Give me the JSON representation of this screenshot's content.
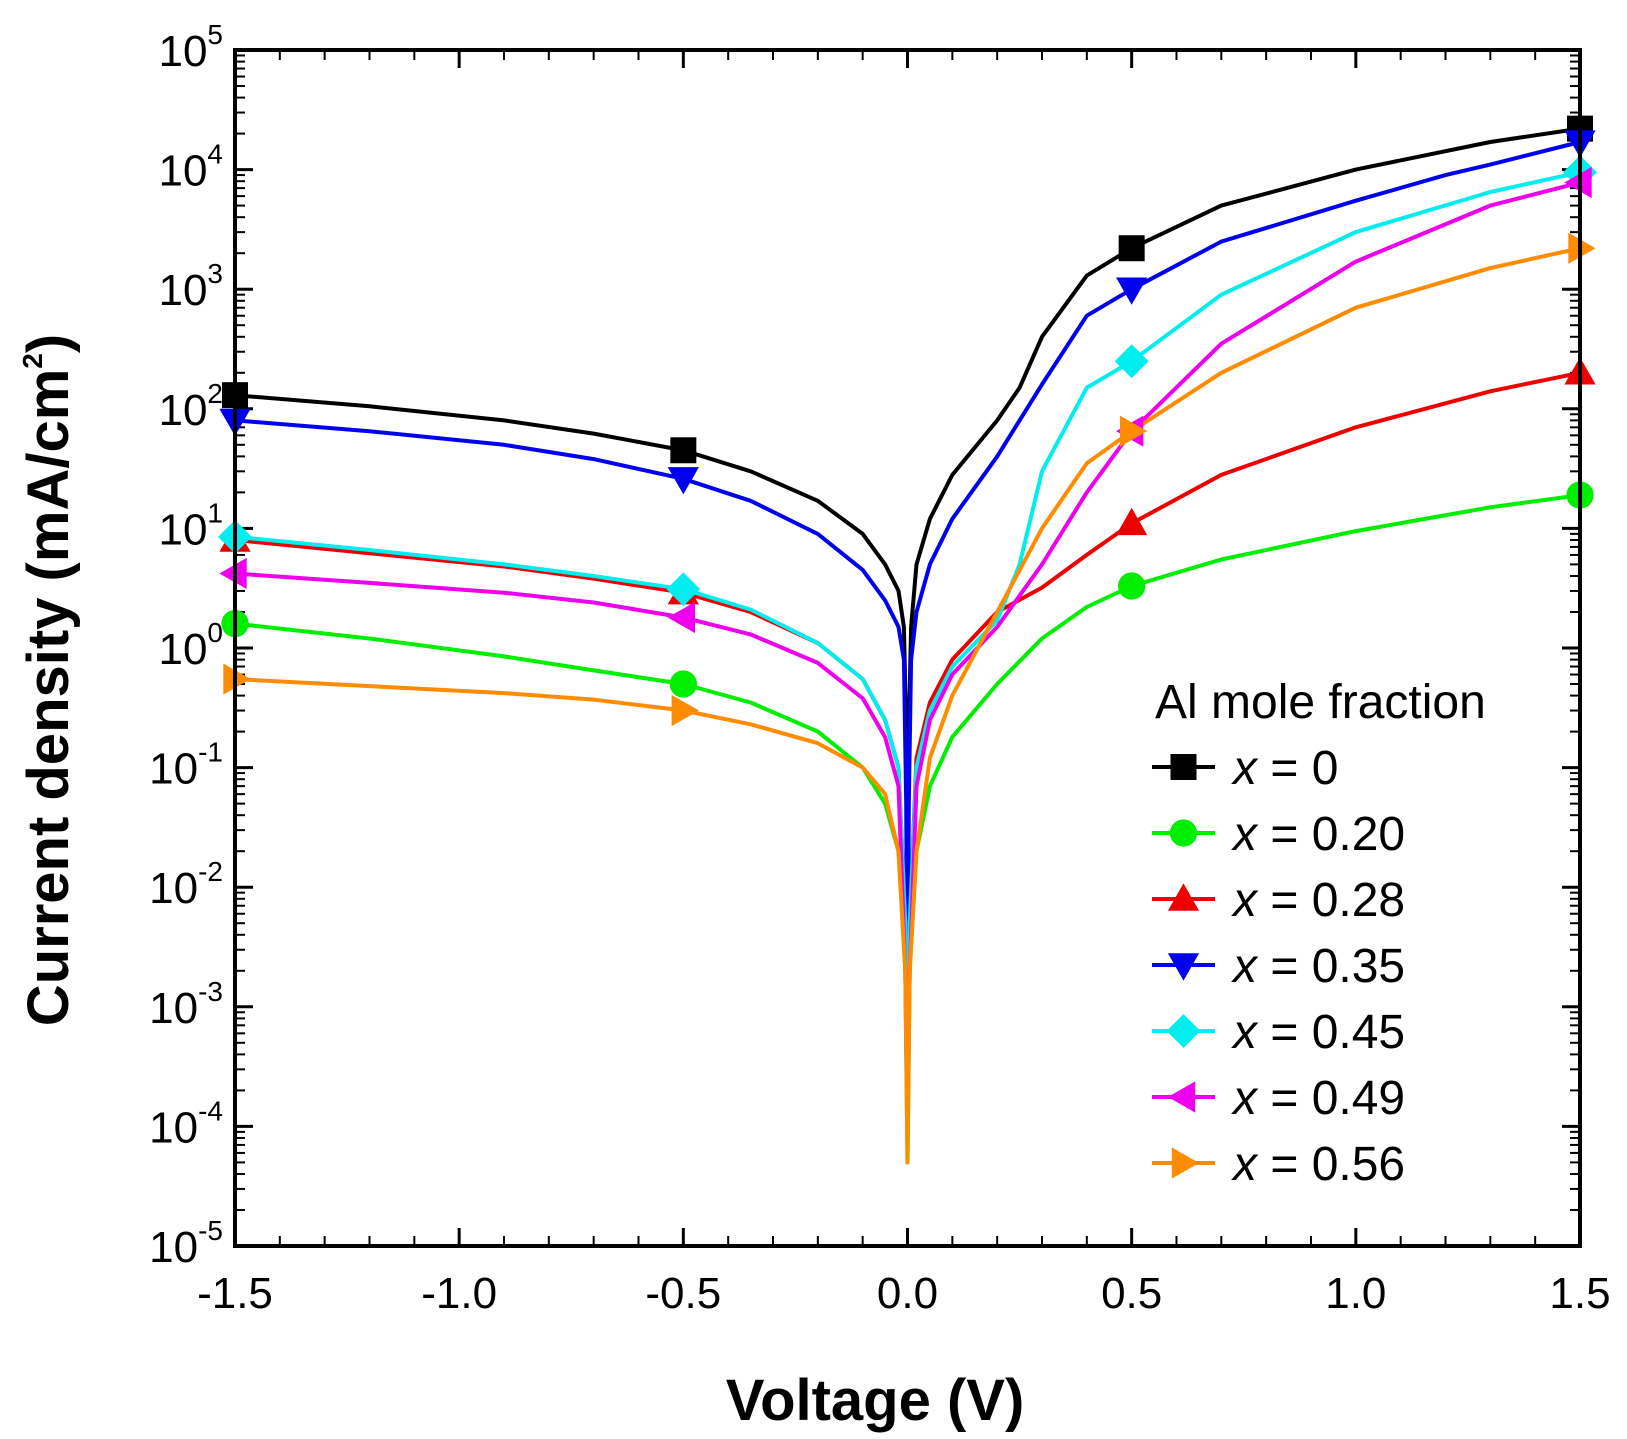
{
  "chart_data": {
    "type": "line",
    "title": "",
    "xlabel": "Voltage (V)",
    "ylabel_main": "Current density (mA/cm",
    "ylabel_sup": "2",
    "ylabel_close": ")",
    "ylabel": "Current density (mA/cm2)",
    "yscale": "log",
    "xlim": [
      -1.5,
      1.5
    ],
    "ylim_exponents": [
      -5,
      5
    ],
    "x_ticks": [
      -1.5,
      -1.0,
      -0.5,
      0.0,
      0.5,
      1.0,
      1.5
    ],
    "x_tick_labels": [
      "-1.5",
      "-1.0",
      "-0.5",
      "0.0",
      "0.5",
      "1.0",
      "1.5"
    ],
    "y_ticks": [
      {
        "base": "10",
        "exp": "5",
        "value": 100000
      },
      {
        "base": "10",
        "exp": "4",
        "value": 10000
      },
      {
        "base": "10",
        "exp": "3",
        "value": 1000
      },
      {
        "base": "10",
        "exp": "2",
        "value": 100
      },
      {
        "base": "10",
        "exp": "1",
        "value": 10
      },
      {
        "base": "10",
        "exp": "0",
        "value": 1
      },
      {
        "base": "10",
        "exp": "-1",
        "value": 0.1
      },
      {
        "base": "10",
        "exp": "-2",
        "value": 0.01
      },
      {
        "base": "10",
        "exp": "-3",
        "value": 0.001
      },
      {
        "base": "10",
        "exp": "-4",
        "value": 0.0001
      },
      {
        "base": "10",
        "exp": "-5",
        "value": 1e-05
      }
    ],
    "legend": {
      "title": "Al mole fraction",
      "placement": "bottom-right",
      "var": "x",
      "eq": " = "
    },
    "series": [
      {
        "name": "x = 0",
        "value": "0",
        "color": "#000000",
        "marker": "square",
        "points": [
          [
            -1.5,
            130
          ],
          [
            -1.2,
            105
          ],
          [
            -0.9,
            80
          ],
          [
            -0.7,
            62
          ],
          [
            -0.5,
            45
          ],
          [
            -0.35,
            30
          ],
          [
            -0.2,
            17
          ],
          [
            -0.1,
            9
          ],
          [
            -0.05,
            5
          ],
          [
            -0.02,
            3
          ],
          [
            -0.008,
            1.5
          ],
          [
            -0.003,
            0.2
          ],
          [
            0,
            0.002
          ],
          [
            0.003,
            0.2
          ],
          [
            0.008,
            1.5
          ],
          [
            0.02,
            5
          ],
          [
            0.05,
            12
          ],
          [
            0.1,
            28
          ],
          [
            0.2,
            80
          ],
          [
            0.25,
            150
          ],
          [
            0.3,
            400
          ],
          [
            0.4,
            1300
          ],
          [
            0.5,
            2200
          ],
          [
            0.7,
            5000
          ],
          [
            1.0,
            10000
          ],
          [
            1.3,
            17000
          ],
          [
            1.5,
            22000
          ]
        ],
        "markers": [
          [
            -1.5,
            130
          ],
          [
            -0.5,
            45
          ],
          [
            0.5,
            2200
          ],
          [
            1.5,
            22000
          ]
        ]
      },
      {
        "name": "x = 0.20",
        "value": "0.20",
        "color": "#00ee00",
        "marker": "circle",
        "points": [
          [
            -1.5,
            1.6
          ],
          [
            -1.2,
            1.2
          ],
          [
            -0.9,
            0.85
          ],
          [
            -0.7,
            0.65
          ],
          [
            -0.5,
            0.5
          ],
          [
            -0.35,
            0.35
          ],
          [
            -0.2,
            0.2
          ],
          [
            -0.1,
            0.1
          ],
          [
            -0.05,
            0.05
          ],
          [
            -0.02,
            0.02
          ],
          [
            -0.005,
            0.002
          ],
          [
            0,
            5e-05
          ],
          [
            0.005,
            0.002
          ],
          [
            0.02,
            0.02
          ],
          [
            0.05,
            0.07
          ],
          [
            0.1,
            0.18
          ],
          [
            0.2,
            0.5
          ],
          [
            0.3,
            1.2
          ],
          [
            0.4,
            2.2
          ],
          [
            0.5,
            3.3
          ],
          [
            0.7,
            5.5
          ],
          [
            1.0,
            9.5
          ],
          [
            1.3,
            15
          ],
          [
            1.5,
            19
          ]
        ],
        "markers": [
          [
            -1.5,
            1.6
          ],
          [
            -0.5,
            0.5
          ],
          [
            0.5,
            3.3
          ],
          [
            1.5,
            19
          ]
        ]
      },
      {
        "name": "x = 0.28",
        "value": "0.28",
        "color": "#ee0000",
        "marker": "triangle-up",
        "points": [
          [
            -1.5,
            8
          ],
          [
            -1.2,
            6.2
          ],
          [
            -0.9,
            4.8
          ],
          [
            -0.7,
            3.8
          ],
          [
            -0.5,
            2.9
          ],
          [
            -0.35,
            2.0
          ],
          [
            -0.2,
            1.1
          ],
          [
            -0.1,
            0.55
          ],
          [
            -0.05,
            0.25
          ],
          [
            -0.02,
            0.1
          ],
          [
            -0.005,
            0.005
          ],
          [
            0,
            0.0002
          ],
          [
            0.005,
            0.005
          ],
          [
            0.02,
            0.12
          ],
          [
            0.05,
            0.35
          ],
          [
            0.1,
            0.8
          ],
          [
            0.2,
            2.0
          ],
          [
            0.3,
            3.2
          ],
          [
            0.4,
            6
          ],
          [
            0.5,
            11
          ],
          [
            0.7,
            28
          ],
          [
            1.0,
            70
          ],
          [
            1.3,
            140
          ],
          [
            1.5,
            200
          ]
        ],
        "markers": [
          [
            -1.5,
            8
          ],
          [
            -0.5,
            2.9
          ],
          [
            0.5,
            11
          ],
          [
            1.5,
            200
          ]
        ]
      },
      {
        "name": "x = 0.35",
        "value": "0.35",
        "color": "#0000ee",
        "marker": "triangle-down",
        "points": [
          [
            -1.5,
            80
          ],
          [
            -1.2,
            65
          ],
          [
            -0.9,
            50
          ],
          [
            -0.7,
            38
          ],
          [
            -0.5,
            26
          ],
          [
            -0.35,
            17
          ],
          [
            -0.2,
            9
          ],
          [
            -0.1,
            4.5
          ],
          [
            -0.05,
            2.5
          ],
          [
            -0.02,
            1.5
          ],
          [
            -0.008,
            0.8
          ],
          [
            -0.003,
            0.05
          ],
          [
            0,
            0.0005
          ],
          [
            0.003,
            0.05
          ],
          [
            0.008,
            0.8
          ],
          [
            0.02,
            2
          ],
          [
            0.05,
            5
          ],
          [
            0.1,
            12
          ],
          [
            0.2,
            40
          ],
          [
            0.3,
            160
          ],
          [
            0.4,
            600
          ],
          [
            0.5,
            1000
          ],
          [
            0.7,
            2500
          ],
          [
            1.0,
            5500
          ],
          [
            1.2,
            9000
          ],
          [
            1.3,
            11000
          ],
          [
            1.5,
            17000
          ]
        ],
        "markers": [
          [
            -1.5,
            80
          ],
          [
            -0.5,
            26
          ],
          [
            0.5,
            1000
          ],
          [
            1.5,
            17000
          ]
        ]
      },
      {
        "name": "x = 0.45",
        "value": "0.45",
        "color": "#00eeee",
        "marker": "diamond",
        "points": [
          [
            -1.5,
            8.5
          ],
          [
            -1.2,
            6.6
          ],
          [
            -0.9,
            5.0
          ],
          [
            -0.7,
            4.0
          ],
          [
            -0.5,
            3.1
          ],
          [
            -0.35,
            2.1
          ],
          [
            -0.2,
            1.1
          ],
          [
            -0.1,
            0.55
          ],
          [
            -0.05,
            0.25
          ],
          [
            -0.02,
            0.1
          ],
          [
            -0.005,
            0.005
          ],
          [
            0,
            0.0001
          ],
          [
            0.005,
            0.005
          ],
          [
            0.02,
            0.1
          ],
          [
            0.05,
            0.3
          ],
          [
            0.1,
            0.7
          ],
          [
            0.2,
            1.7
          ],
          [
            0.25,
            5
          ],
          [
            0.3,
            30
          ],
          [
            0.4,
            150
          ],
          [
            0.5,
            250
          ],
          [
            0.7,
            900
          ],
          [
            1.0,
            3000
          ],
          [
            1.3,
            6500
          ],
          [
            1.5,
            9500
          ]
        ],
        "markers": [
          [
            -1.5,
            8.5
          ],
          [
            -0.5,
            3.1
          ],
          [
            0.5,
            250
          ],
          [
            1.5,
            9500
          ]
        ]
      },
      {
        "name": "x = 0.49",
        "value": "0.49",
        "color": "#ee00ee",
        "marker": "triangle-left",
        "points": [
          [
            -1.5,
            4.2
          ],
          [
            -1.2,
            3.5
          ],
          [
            -0.9,
            2.9
          ],
          [
            -0.7,
            2.4
          ],
          [
            -0.5,
            1.8
          ],
          [
            -0.35,
            1.3
          ],
          [
            -0.2,
            0.75
          ],
          [
            -0.1,
            0.38
          ],
          [
            -0.05,
            0.18
          ],
          [
            -0.02,
            0.07
          ],
          [
            -0.005,
            0.002
          ],
          [
            0,
            0.0001
          ],
          [
            0.005,
            0.002
          ],
          [
            0.02,
            0.07
          ],
          [
            0.05,
            0.25
          ],
          [
            0.1,
            0.6
          ],
          [
            0.2,
            1.5
          ],
          [
            0.3,
            5
          ],
          [
            0.4,
            20
          ],
          [
            0.5,
            65
          ],
          [
            0.7,
            350
          ],
          [
            1.0,
            1700
          ],
          [
            1.3,
            5000
          ],
          [
            1.5,
            7800
          ]
        ],
        "markers": [
          [
            -1.5,
            4.2
          ],
          [
            -0.5,
            1.8
          ],
          [
            0.5,
            65
          ],
          [
            1.5,
            7800
          ]
        ]
      },
      {
        "name": "x = 0.56",
        "value": "0.56",
        "color": "#ff8c00",
        "marker": "triangle-right",
        "points": [
          [
            -1.5,
            0.55
          ],
          [
            -1.2,
            0.48
          ],
          [
            -0.9,
            0.42
          ],
          [
            -0.7,
            0.37
          ],
          [
            -0.5,
            0.3
          ],
          [
            -0.35,
            0.23
          ],
          [
            -0.2,
            0.16
          ],
          [
            -0.1,
            0.1
          ],
          [
            -0.05,
            0.06
          ],
          [
            -0.02,
            0.02
          ],
          [
            -0.005,
            0.002
          ],
          [
            0,
            5e-05
          ],
          [
            0.005,
            0.002
          ],
          [
            0.02,
            0.02
          ],
          [
            0.05,
            0.12
          ],
          [
            0.1,
            0.4
          ],
          [
            0.2,
            2.0
          ],
          [
            0.3,
            10
          ],
          [
            0.4,
            35
          ],
          [
            0.5,
            65
          ],
          [
            0.7,
            200
          ],
          [
            1.0,
            700
          ],
          [
            1.3,
            1500
          ],
          [
            1.5,
            2200
          ]
        ],
        "markers": [
          [
            -1.5,
            0.55
          ],
          [
            -0.5,
            0.3
          ],
          [
            0.5,
            65
          ],
          [
            1.5,
            2200
          ]
        ]
      }
    ]
  }
}
